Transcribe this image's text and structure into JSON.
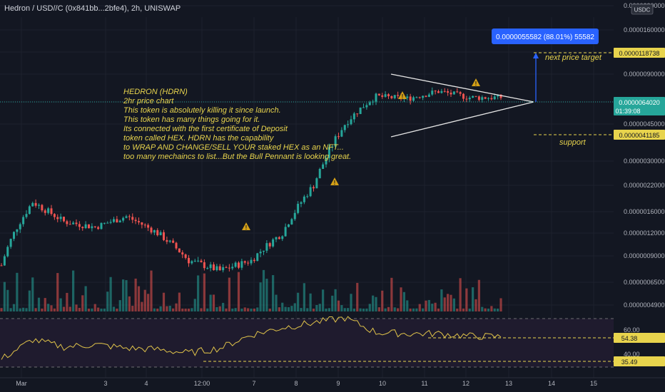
{
  "header": {
    "title": "Hedron / USD//C (0x841bb...2bfe4), 2h, UNISWAP"
  },
  "currency_button": "USDC",
  "colors": {
    "background": "#131722",
    "bull": "#26a69a",
    "bear": "#ef5350",
    "annotation": "#e8d44d",
    "accent": "#2962ff",
    "rsi_line": "#e0c34a"
  },
  "annotation_text": [
    "HEDRON (HDRN)",
    "2hr price chart",
    "This token is absolutely killing it since launch.",
    "This token has many things going for it.",
    "Its connected with the first certificate of Deposit",
    "token called HEX. HDRN has the capability",
    " to WRAP AND CHANGE/SELL YOUR staked HEX as an NFT...",
    "too many mechaincs to list...But the Bull Pennant is looking great."
  ],
  "labels": {
    "target": "next price target",
    "support": "support"
  },
  "measure_box": "0.0000055582 (88.01%) 55582",
  "price_tags": {
    "target": "0.0000118738",
    "current": "0.0000064020",
    "countdown": "01:39:08",
    "support": "0.0000041185"
  },
  "rsi_tags": {
    "value": "54.38",
    "low": "35.49"
  },
  "chart_data": {
    "type": "candlestick",
    "timeframe": "2h",
    "price_axis_ticks": [
      "0.0000230000",
      "0.0000160000",
      "0.0000120000",
      "0.0000090000",
      "0.0000060000",
      "0.0000045000",
      "0.0000030000",
      "0.0000022000",
      "0.0000016000",
      "0.0000012000",
      "0.0000009000",
      "0.0000006500",
      "0.0000004900"
    ],
    "rsi_axis_ticks": [
      "60.00",
      "40.00"
    ],
    "x_axis_ticks": [
      "Mar",
      "3",
      "4",
      "12:00",
      "7",
      "8",
      "9",
      "10",
      "11",
      "12",
      "13",
      "14",
      "15"
    ],
    "price_levels": {
      "next_price_target": 1.18738e-05,
      "current": 6.402e-06,
      "support": 4.1185e-06
    },
    "measured_move": {
      "change": 5.5582e-06,
      "percent": 88.01,
      "ticks": 55582
    },
    "close_path": [
      [
        0,
        8e-07
      ],
      [
        10,
        1.8e-06
      ],
      [
        20,
        1.4e-06
      ],
      [
        30,
        1.3e-06
      ],
      [
        40,
        1.5e-06
      ],
      [
        50,
        1.2e-06
      ],
      [
        60,
        8.5e-07
      ],
      [
        70,
        7.5e-07
      ],
      [
        80,
        8.5e-07
      ],
      [
        90,
        1.2e-06
      ],
      [
        100,
        2.2e-06
      ],
      [
        110,
        4.5e-06
      ],
      [
        120,
        6.5e-06
      ],
      [
        130,
        6.3e-06
      ],
      [
        140,
        7e-06
      ],
      [
        150,
        6.4e-06
      ],
      [
        160,
        6.402e-06
      ]
    ],
    "rsi_path": [
      [
        0,
        36
      ],
      [
        10,
        52
      ],
      [
        20,
        46
      ],
      [
        30,
        48
      ],
      [
        40,
        45
      ],
      [
        50,
        44
      ],
      [
        60,
        41
      ],
      [
        70,
        45
      ],
      [
        80,
        56
      ],
      [
        90,
        62
      ],
      [
        100,
        66
      ],
      [
        110,
        70
      ],
      [
        120,
        58
      ],
      [
        130,
        57
      ],
      [
        140,
        57
      ],
      [
        150,
        55
      ],
      [
        160,
        54.38
      ]
    ]
  }
}
